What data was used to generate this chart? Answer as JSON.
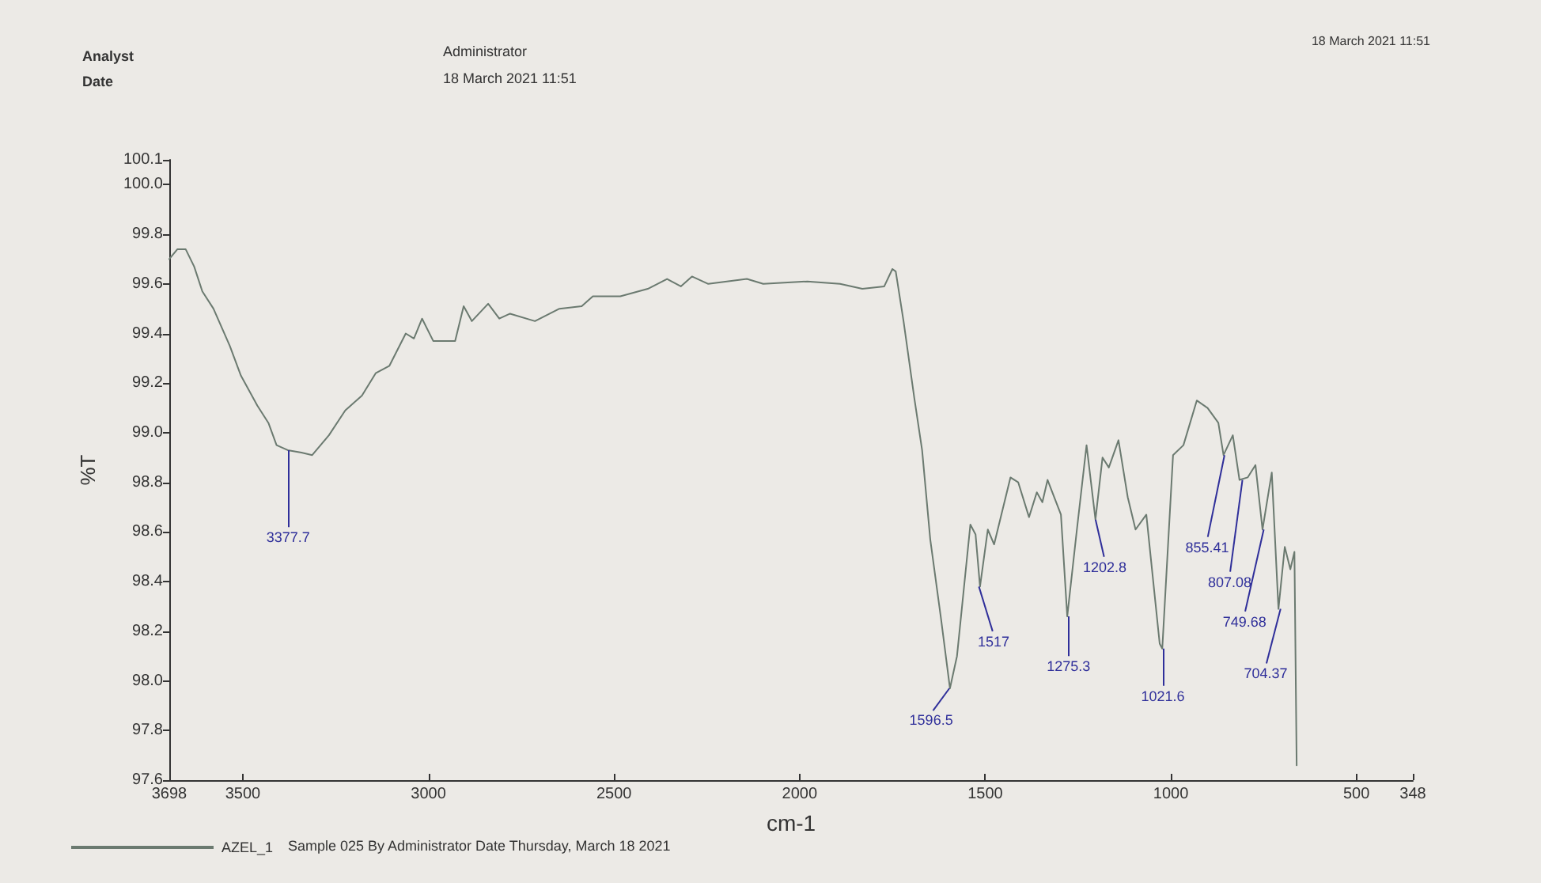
{
  "chart_data": {
    "type": "line",
    "xlabel": "cm-1",
    "ylabel": "%T",
    "xlim": [
      3698,
      348
    ],
    "xticks": [
      3698,
      3500,
      3000,
      2500,
      2000,
      1500,
      1000,
      500,
      348
    ],
    "ylim": [
      97.6,
      100.1
    ],
    "yticks": [
      97.6,
      97.8,
      {
        "value": 98,
        "label": "98.0"
      },
      98.2,
      98.4,
      98.6,
      98.8,
      {
        "value": 99,
        "label": "99.0"
      },
      99.2,
      99.4,
      99.6,
      99.8,
      {
        "value": 100,
        "label": "100.0"
      },
      100.1
    ],
    "grid": false,
    "legend": "bottom left",
    "marker": "none",
    "line_style": "solid",
    "series": [
      {
        "name": "AZEL_1",
        "color": "#6b7a70",
        "x": [
          3698,
          3676,
          3654,
          3631,
          3609,
          3579,
          3535,
          3505,
          3461,
          3431,
          3409,
          3379,
          3342,
          3313,
          3268,
          3224,
          3179,
          3142,
          3105,
          3061,
          3039,
          3017,
          2987,
          2928,
          2905,
          2883,
          2839,
          2809,
          2780,
          2713,
          2647,
          2587,
          2557,
          2483,
          2409,
          2357,
          2320,
          2290,
          2246,
          2142,
          2098,
          1979,
          1891,
          1831,
          1772,
          1750,
          1741,
          1720,
          1691,
          1670,
          1648,
          1619,
          1595,
          1576,
          1540,
          1526,
          1514,
          1493,
          1476,
          1432,
          1411,
          1382,
          1361,
          1346,
          1332,
          1296,
          1279,
          1253,
          1227,
          1203,
          1184,
          1167,
          1141,
          1116,
          1095,
          1066,
          1030,
          1023,
          994,
          966,
          930,
          901,
          872,
          858,
          833,
          815,
          793,
          772,
          753,
          728,
          710,
          693,
          678,
          667,
          661
        ],
        "values": [
          99.7,
          99.74,
          99.74,
          99.67,
          99.57,
          99.5,
          99.35,
          99.23,
          99.11,
          99.04,
          98.95,
          98.93,
          98.92,
          98.91,
          98.99,
          99.09,
          99.15,
          99.24,
          99.27,
          99.4,
          99.38,
          99.46,
          99.37,
          99.37,
          99.51,
          99.45,
          99.52,
          99.46,
          99.48,
          99.45,
          99.5,
          99.51,
          99.55,
          99.55,
          99.58,
          99.62,
          99.59,
          99.63,
          99.6,
          99.62,
          99.6,
          99.61,
          99.6,
          99.58,
          99.59,
          99.66,
          99.65,
          99.45,
          99.14,
          98.93,
          98.57,
          98.25,
          97.97,
          98.1,
          98.63,
          98.59,
          98.38,
          98.61,
          98.55,
          98.82,
          98.8,
          98.66,
          98.76,
          98.72,
          98.81,
          98.67,
          98.26,
          98.61,
          98.95,
          98.65,
          98.9,
          98.86,
          98.97,
          98.74,
          98.61,
          98.67,
          98.15,
          98.13,
          98.91,
          98.95,
          99.13,
          99.1,
          99.04,
          98.91,
          98.99,
          98.81,
          98.82,
          98.87,
          98.61,
          98.84,
          98.29,
          98.54,
          98.45,
          98.52,
          97.66
        ]
      }
    ],
    "annotations": [
      "Analyst",
      "Date",
      "Administrator",
      "18 March 2021 11:51",
      "18 March 2021 11:51",
      "Sample 025 By Administrator Date Thursday, March 18 2021",
      {
        "text": "3377.7",
        "x": 3377.7,
        "y": 98.93
      },
      {
        "text": "1596.5",
        "x": 1596.5,
        "y": 97.97
      },
      {
        "text": "1517",
        "x": 1517,
        "y": 98.38
      },
      {
        "text": "1275.3",
        "x": 1275.3,
        "y": 98.26
      },
      {
        "text": "1202.8",
        "x": 1202.8,
        "y": 98.65
      },
      {
        "text": "1021.6",
        "x": 1021.6,
        "y": 98.13
      },
      {
        "text": "855.41",
        "x": 855.41,
        "y": 98.91
      },
      {
        "text": "807.08",
        "x": 807.08,
        "y": 98.81
      },
      {
        "text": "749.68",
        "x": 749.68,
        "y": 98.61
      },
      {
        "text": "704.37",
        "x": 704.37,
        "y": 98.29
      }
    ]
  }
}
